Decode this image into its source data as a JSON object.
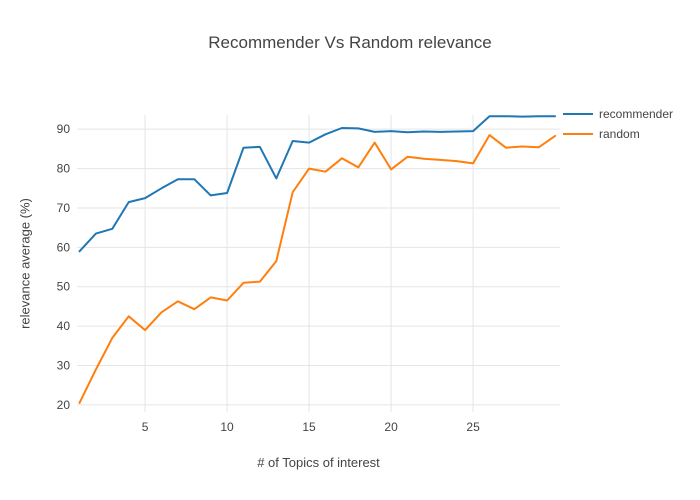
{
  "title": "Recommender Vs Random relevance",
  "chart_data": {
    "type": "line",
    "title": "Recommender Vs Random relevance",
    "xlabel": "# of Topics of interest",
    "ylabel": "relevance average (%)",
    "x": [
      1,
      2,
      3,
      4,
      5,
      6,
      7,
      8,
      9,
      10,
      11,
      12,
      13,
      14,
      15,
      16,
      17,
      18,
      19,
      20,
      21,
      22,
      23,
      24,
      25,
      26,
      27,
      28,
      29,
      30
    ],
    "series": [
      {
        "name": "recommender",
        "color": "#1f77b4",
        "values": [
          59,
          63.5,
          64.7,
          71.5,
          72.5,
          75,
          77.3,
          77.3,
          73.2,
          73.8,
          85.3,
          85.5,
          77.5,
          87,
          86.6,
          88.7,
          90.3,
          90.2,
          89.3,
          89.5,
          89.2,
          89.4,
          89.3,
          89.4,
          89.5,
          93.3,
          93.3,
          93.2,
          93.3,
          93.3
        ]
      },
      {
        "name": "random",
        "color": "#ff7f0e",
        "values": [
          20.5,
          29,
          37,
          42.5,
          39,
          43.5,
          46.3,
          44.3,
          47.3,
          46.5,
          51,
          51.3,
          56.5,
          74,
          80,
          79.2,
          82.6,
          80.3,
          86.6,
          79.8,
          83,
          82.5,
          82.2,
          81.9,
          81.3,
          88.5,
          85.3,
          85.6,
          85.4,
          88.3
        ]
      }
    ],
    "x_ticks": [
      5,
      10,
      15,
      20,
      25
    ],
    "y_ticks": [
      20,
      30,
      40,
      50,
      60,
      70,
      80,
      90
    ],
    "x_range": [
      0.85,
      30.3
    ],
    "y_range": [
      18.2,
      93.6
    ],
    "grid": true,
    "legend_position": "top-right",
    "line_width": 2
  },
  "colors": {
    "background": "#ffffff",
    "grid": "#e5e5e5",
    "text": "#444444",
    "series_blue": "#1f77b4",
    "series_orange": "#ff7f0e"
  }
}
